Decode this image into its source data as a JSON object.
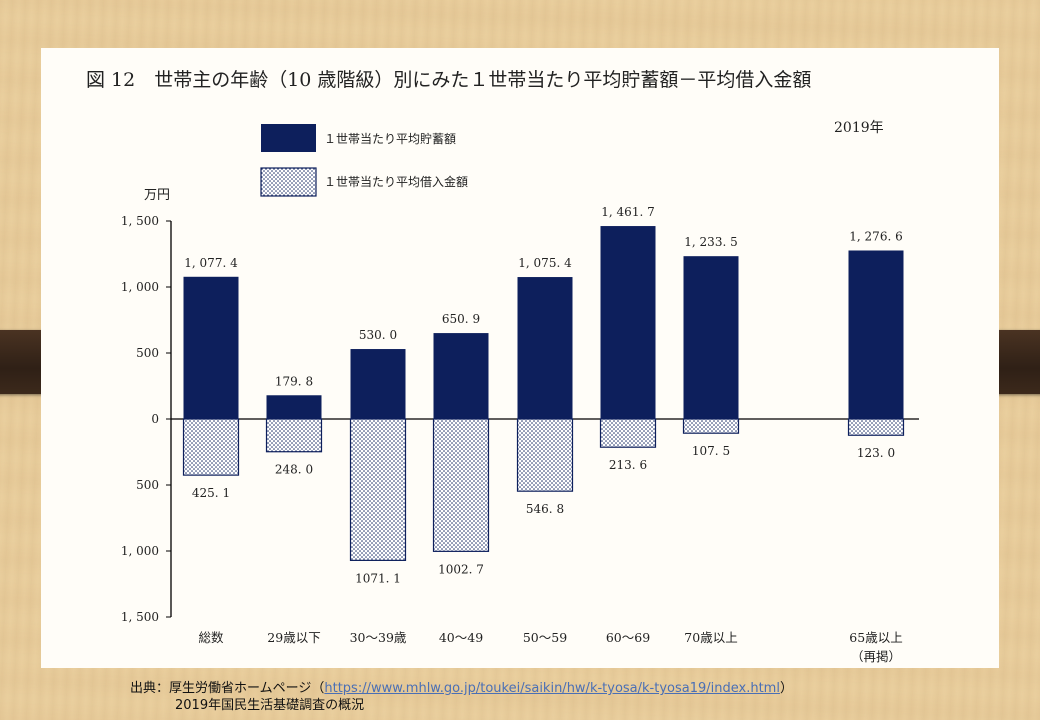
{
  "title": "図 12　世帯主の年齢（10 歳階級）別にみた１世帯当たり平均貯蓄額－平均借入金額",
  "year_label": "2019年",
  "unit_label": "万円",
  "colors": {
    "savings": "#0d1f5c",
    "borrowing_dot": "#0d1f5c",
    "borrowing_bg": "#ffffff",
    "axis": "#000000"
  },
  "chart_data": {
    "type": "bar",
    "title": "図 12　世帯主の年齢（10 歳階級）別にみた１世帯当たり平均貯蓄額－平均借入金額",
    "categories": [
      "総数",
      "29歳以下",
      "30～39歳",
      "40～49",
      "50～59",
      "60～69",
      "70歳以上",
      "65歳以上"
    ],
    "category_notes": [
      "",
      "",
      "",
      "",
      "",
      "",
      "",
      "（再掲）"
    ],
    "series": [
      {
        "name": "１世帯当たり平均貯蓄額",
        "values": [
          1077.4,
          179.8,
          530.0,
          650.9,
          1075.4,
          1461.7,
          1233.5,
          1276.6
        ],
        "labels": [
          "1, 077. 4",
          "179. 8",
          "530. 0",
          "650. 9",
          "1, 075. 4",
          "1, 461. 7",
          "1, 233. 5",
          "1, 276. 6"
        ],
        "direction": "up",
        "fill": "solid"
      },
      {
        "name": "１世帯当たり平均借入金額",
        "values": [
          425.1,
          248.0,
          1071.1,
          1002.7,
          546.8,
          213.6,
          107.5,
          123.0
        ],
        "labels": [
          "425. 1",
          "248. 0",
          "1071. 1",
          "1002. 7",
          "546. 8",
          "213. 6",
          "107. 5",
          "123. 0"
        ],
        "direction": "down",
        "fill": "dotted"
      }
    ],
    "yticks": [
      1500,
      1000,
      500,
      0,
      -500,
      -1000,
      -1500
    ],
    "ytick_labels": [
      "1, 500",
      "1, 000",
      "500",
      "0",
      "500",
      "1, 000",
      "1, 500"
    ],
    "ylim": [
      -1500,
      1500
    ],
    "legend_position": "top-left",
    "grid": false
  },
  "source": {
    "prefix": "出典：厚生労働省ホームページ（",
    "url": "https://www.mhlw.go.jp/toukei/saikin/hw/k-tyosa/k-tyosa19/index.html",
    "suffix": "）",
    "line2": "2019年国民生活基礎調査の概況"
  }
}
